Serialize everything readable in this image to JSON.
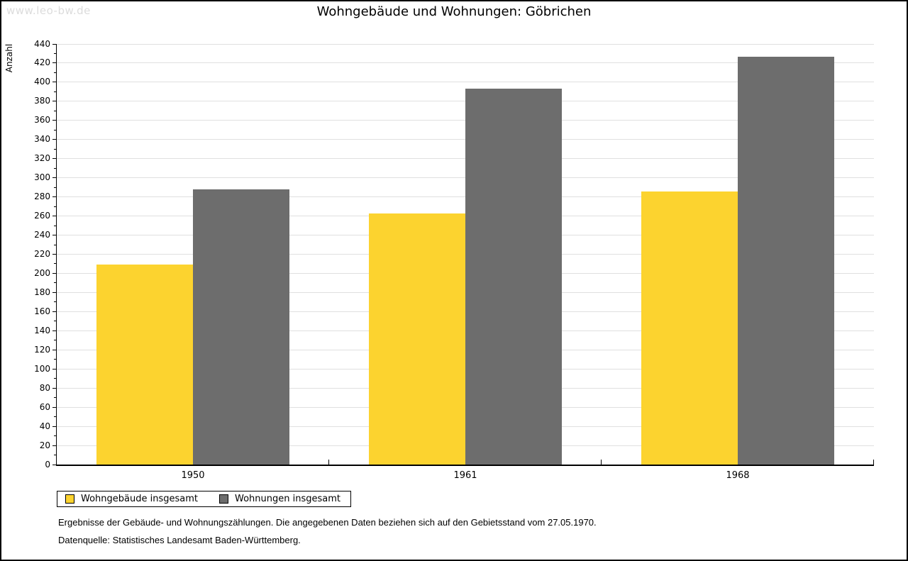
{
  "watermark": "www.leo-bw.de",
  "chart_data": {
    "type": "bar",
    "title": "Wohngebäude und Wohnungen: Göbrichen",
    "ylabel": "Anzahl",
    "xlabel": "",
    "categories": [
      "1950",
      "1961",
      "1968"
    ],
    "series": [
      {
        "name": "Wohngebäude insgesamt",
        "slug": "wohngebaeude-insgesamt",
        "color": "#FCD32F",
        "values": [
          209,
          263,
          286
        ]
      },
      {
        "name": "Wohnungen insgesamt",
        "slug": "wohnungen-insgesamt",
        "color": "#6D6D6D",
        "values": [
          288,
          393,
          427
        ]
      }
    ],
    "ylim": [
      0,
      440
    ],
    "ytick_step": 20,
    "yminor_step": 10,
    "grid": true,
    "gridline_color": "#E0E0E0",
    "axis_color": "#000000",
    "legend_position": "bottom-left"
  },
  "footnotes": {
    "line1": "Ergebnisse der Gebäude- und Wohnungszählungen. Die angegebenen Daten beziehen sich auf den Gebietsstand vom 27.05.1970.",
    "line2": "Datenquelle: Statistisches Landesamt Baden-Württemberg."
  }
}
